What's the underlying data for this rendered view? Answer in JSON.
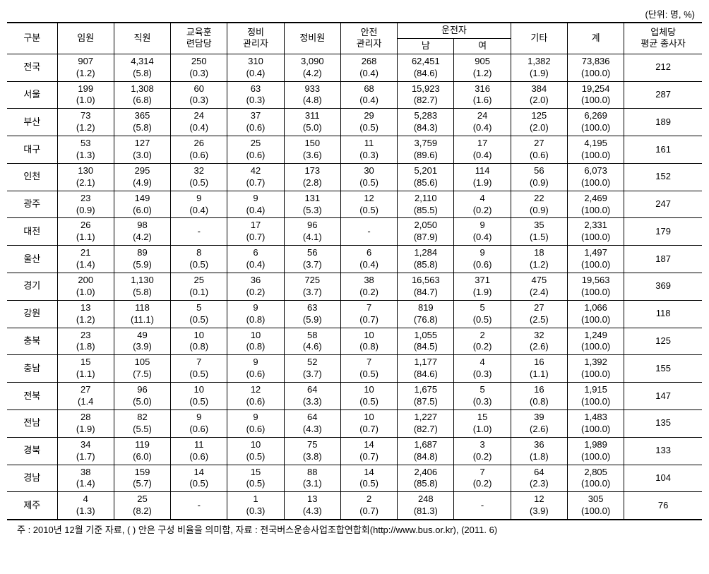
{
  "unit_label": "(단위: 명, %)",
  "columns": {
    "region": "구분",
    "exec": "임원",
    "staff": "직원",
    "edu": "교육훈\n련담당",
    "mmgr": "정비\n관리자",
    "mech": "정비원",
    "safety": "안전\n관리자",
    "driver": "운전자",
    "driver_m": "남",
    "driver_f": "여",
    "etc": "기타",
    "total": "계",
    "avg": "업체당\n평균 종사자"
  },
  "rows": [
    {
      "region": "전국",
      "exec": [
        "907",
        "(1.2)"
      ],
      "staff": [
        "4,314",
        "(5.8)"
      ],
      "edu": [
        "250",
        "(0.3)"
      ],
      "mmgr": [
        "310",
        "(0.4)"
      ],
      "mech": [
        "3,090",
        "(4.2)"
      ],
      "safety": [
        "268",
        "(0.4)"
      ],
      "dm": [
        "62,451",
        "(84.6)"
      ],
      "df": [
        "905",
        "(1.2)"
      ],
      "etc": [
        "1,382",
        "(1.9)"
      ],
      "total": [
        "73,836",
        "(100.0)"
      ],
      "avg": "212"
    },
    {
      "region": "서울",
      "exec": [
        "199",
        "(1.0)"
      ],
      "staff": [
        "1,308",
        "(6.8)"
      ],
      "edu": [
        "60",
        "(0.3)"
      ],
      "mmgr": [
        "63",
        "(0.3)"
      ],
      "mech": [
        "933",
        "(4.8)"
      ],
      "safety": [
        "68",
        "(0.4)"
      ],
      "dm": [
        "15,923",
        "(82.7)"
      ],
      "df": [
        "316",
        "(1.6)"
      ],
      "etc": [
        "384",
        "(2.0)"
      ],
      "total": [
        "19,254",
        "(100.0)"
      ],
      "avg": "287"
    },
    {
      "region": "부산",
      "exec": [
        "73",
        "(1.2)"
      ],
      "staff": [
        "365",
        "(5.8)"
      ],
      "edu": [
        "24",
        "(0.4)"
      ],
      "mmgr": [
        "37",
        "(0.6)"
      ],
      "mech": [
        "311",
        "(5.0)"
      ],
      "safety": [
        "29",
        "(0.5)"
      ],
      "dm": [
        "5,283",
        "(84.3)"
      ],
      "df": [
        "24",
        "(0.4)"
      ],
      "etc": [
        "125",
        "(2.0)"
      ],
      "total": [
        "6,269",
        "(100.0)"
      ],
      "avg": "189"
    },
    {
      "region": "대구",
      "exec": [
        "53",
        "(1.3)"
      ],
      "staff": [
        "127",
        "(3.0)"
      ],
      "edu": [
        "26",
        "(0.6)"
      ],
      "mmgr": [
        "25",
        "(0.6)"
      ],
      "mech": [
        "150",
        "(3.6)"
      ],
      "safety": [
        "11",
        "(0.3)"
      ],
      "dm": [
        "3,759",
        "(89.6)"
      ],
      "df": [
        "17",
        "(0.4)"
      ],
      "etc": [
        "27",
        "(0.6)"
      ],
      "total": [
        "4,195",
        "(100.0)"
      ],
      "avg": "161"
    },
    {
      "region": "인천",
      "exec": [
        "130",
        "(2.1)"
      ],
      "staff": [
        "295",
        "(4.9)"
      ],
      "edu": [
        "32",
        "(0.5)"
      ],
      "mmgr": [
        "42",
        "(0.7)"
      ],
      "mech": [
        "173",
        "(2.8)"
      ],
      "safety": [
        "30",
        "(0.5)"
      ],
      "dm": [
        "5,201",
        "(85.6)"
      ],
      "df": [
        "114",
        "(1.9)"
      ],
      "etc": [
        "56",
        "(0.9)"
      ],
      "total": [
        "6,073",
        "(100.0)"
      ],
      "avg": "152"
    },
    {
      "region": "광주",
      "exec": [
        "23",
        "(0.9)"
      ],
      "staff": [
        "149",
        "(6.0)"
      ],
      "edu": [
        "9",
        "(0.4)"
      ],
      "mmgr": [
        "9",
        "(0.4)"
      ],
      "mech": [
        "131",
        "(5.3)"
      ],
      "safety": [
        "12",
        "(0.5)"
      ],
      "dm": [
        "2,110",
        "(85.5)"
      ],
      "df": [
        "4",
        "(0.2)"
      ],
      "etc": [
        "22",
        "(0.9)"
      ],
      "total": [
        "2,469",
        "(100.0)"
      ],
      "avg": "247"
    },
    {
      "region": "대전",
      "exec": [
        "26",
        "(1.1)"
      ],
      "staff": [
        "98",
        "(4.2)"
      ],
      "edu": [
        "-",
        ""
      ],
      "mmgr": [
        "17",
        "(0.7)"
      ],
      "mech": [
        "96",
        "(4.1)"
      ],
      "safety": [
        "-",
        ""
      ],
      "dm": [
        "2,050",
        "(87.9)"
      ],
      "df": [
        "9",
        "(0.4)"
      ],
      "etc": [
        "35",
        "(1.5)"
      ],
      "total": [
        "2,331",
        "(100.0)"
      ],
      "avg": "179"
    },
    {
      "region": "울산",
      "exec": [
        "21",
        "(1.4)"
      ],
      "staff": [
        "89",
        "(5.9)"
      ],
      "edu": [
        "8",
        "(0.5)"
      ],
      "mmgr": [
        "6",
        "(0.4)"
      ],
      "mech": [
        "56",
        "(3.7)"
      ],
      "safety": [
        "6",
        "(0.4)"
      ],
      "dm": [
        "1,284",
        "(85.8)"
      ],
      "df": [
        "9",
        "(0.6)"
      ],
      "etc": [
        "18",
        "(1.2)"
      ],
      "total": [
        "1,497",
        "(100.0)"
      ],
      "avg": "187"
    },
    {
      "region": "경기",
      "exec": [
        "200",
        "(1.0)"
      ],
      "staff": [
        "1,130",
        "(5.8)"
      ],
      "edu": [
        "25",
        "(0.1)"
      ],
      "mmgr": [
        "36",
        "(0.2)"
      ],
      "mech": [
        "725",
        "(3.7)"
      ],
      "safety": [
        "38",
        "(0.2)"
      ],
      "dm": [
        "16,563",
        "(84.7)"
      ],
      "df": [
        "371",
        "(1.9)"
      ],
      "etc": [
        "475",
        "(2.4)"
      ],
      "total": [
        "19,563",
        "(100.0)"
      ],
      "avg": "369"
    },
    {
      "region": "강원",
      "exec": [
        "13",
        "(1.2)"
      ],
      "staff": [
        "118",
        "(11.1)"
      ],
      "edu": [
        "5",
        "(0.5)"
      ],
      "mmgr": [
        "9",
        "(0.8)"
      ],
      "mech": [
        "63",
        "(5.9)"
      ],
      "safety": [
        "7",
        "(0.7)"
      ],
      "dm": [
        "819",
        "(76.8)"
      ],
      "df": [
        "5",
        "(0.5)"
      ],
      "etc": [
        "27",
        "(2.5)"
      ],
      "total": [
        "1,066",
        "(100.0)"
      ],
      "avg": "118"
    },
    {
      "region": "충북",
      "exec": [
        "23",
        "(1.8)"
      ],
      "staff": [
        "49",
        "(3.9)"
      ],
      "edu": [
        "10",
        "(0.8)"
      ],
      "mmgr": [
        "10",
        "(0.8)"
      ],
      "mech": [
        "58",
        "(4.6)"
      ],
      "safety": [
        "10",
        "(0.8)"
      ],
      "dm": [
        "1,055",
        "(84.5)"
      ],
      "df": [
        "2",
        "(0.2)"
      ],
      "etc": [
        "32",
        "(2.6)"
      ],
      "total": [
        "1,249",
        "(100.0)"
      ],
      "avg": "125"
    },
    {
      "region": "충남",
      "exec": [
        "15",
        "(1.1)"
      ],
      "staff": [
        "105",
        "(7.5)"
      ],
      "edu": [
        "7",
        "(0.5)"
      ],
      "mmgr": [
        "9",
        "(0.6)"
      ],
      "mech": [
        "52",
        "(3.7)"
      ],
      "safety": [
        "7",
        "(0.5)"
      ],
      "dm": [
        "1,177",
        "(84.6)"
      ],
      "df": [
        "4",
        "(0.3)"
      ],
      "etc": [
        "16",
        "(1.1)"
      ],
      "total": [
        "1,392",
        "(100.0)"
      ],
      "avg": "155"
    },
    {
      "region": "전북",
      "exec": [
        "27",
        "(1.4"
      ],
      "staff": [
        "96",
        "(5.0)"
      ],
      "edu": [
        "10",
        "(0.5)"
      ],
      "mmgr": [
        "12",
        "(0.6)"
      ],
      "mech": [
        "64",
        "(3.3)"
      ],
      "safety": [
        "10",
        "(0.5)"
      ],
      "dm": [
        "1,675",
        "(87.5)"
      ],
      "df": [
        "5",
        "(0.3)"
      ],
      "etc": [
        "16",
        "(0.8)"
      ],
      "total": [
        "1,915",
        "(100.0)"
      ],
      "avg": "147"
    },
    {
      "region": "전남",
      "exec": [
        "28",
        "(1.9)"
      ],
      "staff": [
        "82",
        "(5.5)"
      ],
      "edu": [
        "9",
        "(0.6)"
      ],
      "mmgr": [
        "9",
        "(0.6)"
      ],
      "mech": [
        "64",
        "(4.3)"
      ],
      "safety": [
        "10",
        "(0.7)"
      ],
      "dm": [
        "1,227",
        "(82.7)"
      ],
      "df": [
        "15",
        "(1.0)"
      ],
      "etc": [
        "39",
        "(2.6)"
      ],
      "total": [
        "1,483",
        "(100.0)"
      ],
      "avg": "135"
    },
    {
      "region": "경북",
      "exec": [
        "34",
        "(1.7)"
      ],
      "staff": [
        "119",
        "(6.0)"
      ],
      "edu": [
        "11",
        "(0.6)"
      ],
      "mmgr": [
        "10",
        "(0.5)"
      ],
      "mech": [
        "75",
        "(3.8)"
      ],
      "safety": [
        "14",
        "(0.7)"
      ],
      "dm": [
        "1,687",
        "(84.8)"
      ],
      "df": [
        "3",
        "(0.2)"
      ],
      "etc": [
        "36",
        "(1.8)"
      ],
      "total": [
        "1,989",
        "(100.0)"
      ],
      "avg": "133"
    },
    {
      "region": "경남",
      "exec": [
        "38",
        "(1.4)"
      ],
      "staff": [
        "159",
        "(5.7)"
      ],
      "edu": [
        "14",
        "(0.5)"
      ],
      "mmgr": [
        "15",
        "(0.5)"
      ],
      "mech": [
        "88",
        "(3.1)"
      ],
      "safety": [
        "14",
        "(0.5)"
      ],
      "dm": [
        "2,406",
        "(85.8)"
      ],
      "df": [
        "7",
        "(0.2)"
      ],
      "etc": [
        "64",
        "(2.3)"
      ],
      "total": [
        "2,805",
        "(100.0)"
      ],
      "avg": "104"
    },
    {
      "region": "제주",
      "exec": [
        "4",
        "(1.3)"
      ],
      "staff": [
        "25",
        "(8.2)"
      ],
      "edu": [
        "-",
        ""
      ],
      "mmgr": [
        "1",
        "(0.3)"
      ],
      "mech": [
        "13",
        "(4.3)"
      ],
      "safety": [
        "2",
        "(0.7)"
      ],
      "dm": [
        "248",
        "(81.3)"
      ],
      "df": [
        "-",
        ""
      ],
      "etc": [
        "12",
        "(3.9)"
      ],
      "total": [
        "305",
        "(100.0)"
      ],
      "avg": "76"
    }
  ],
  "footnote": "주 : 2010년 12월 기준 자료, (  ) 안은 구성 비율을 의미함, 자료 : 전국버스운송사업조합연합회(http://www.bus.or.kr), (2011. 6)"
}
